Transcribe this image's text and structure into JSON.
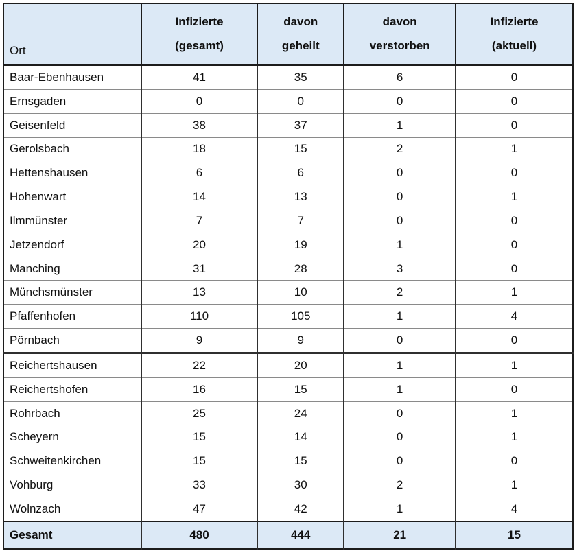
{
  "table": {
    "header": {
      "ort": "Ort",
      "infizierte_gesamt_line1": "Infizierte",
      "infizierte_gesamt_line2": "(gesamt)",
      "davon_geheilt_line1": "davon",
      "davon_geheilt_line2": "geheilt",
      "davon_verstorben_line1": "davon",
      "davon_verstorben_line2": "verstorben",
      "infizierte_aktuell_line1": "Infizierte",
      "infizierte_aktuell_line2": "(aktuell)"
    },
    "rows": [
      {
        "ort": "Baar-Ebenhausen",
        "infizierte_gesamt": 41,
        "davon_geheilt": 35,
        "davon_verstorben": 6,
        "infizierte_aktuell": 0
      },
      {
        "ort": "Ernsgaden",
        "infizierte_gesamt": 0,
        "davon_geheilt": 0,
        "davon_verstorben": 0,
        "infizierte_aktuell": 0
      },
      {
        "ort": "Geisenfeld",
        "infizierte_gesamt": 38,
        "davon_geheilt": 37,
        "davon_verstorben": 1,
        "infizierte_aktuell": 0
      },
      {
        "ort": "Gerolsbach",
        "infizierte_gesamt": 18,
        "davon_geheilt": 15,
        "davon_verstorben": 2,
        "infizierte_aktuell": 1
      },
      {
        "ort": "Hettenshausen",
        "infizierte_gesamt": 6,
        "davon_geheilt": 6,
        "davon_verstorben": 0,
        "infizierte_aktuell": 0
      },
      {
        "ort": "Hohenwart",
        "infizierte_gesamt": 14,
        "davon_geheilt": 13,
        "davon_verstorben": 0,
        "infizierte_aktuell": 1
      },
      {
        "ort": "Ilmmünster",
        "infizierte_gesamt": 7,
        "davon_geheilt": 7,
        "davon_verstorben": 0,
        "infizierte_aktuell": 0
      },
      {
        "ort": "Jetzendorf",
        "infizierte_gesamt": 20,
        "davon_geheilt": 19,
        "davon_verstorben": 1,
        "infizierte_aktuell": 0
      },
      {
        "ort": "Manching",
        "infizierte_gesamt": 31,
        "davon_geheilt": 28,
        "davon_verstorben": 3,
        "infizierte_aktuell": 0
      },
      {
        "ort": "Münchsmünster",
        "infizierte_gesamt": 13,
        "davon_geheilt": 10,
        "davon_verstorben": 2,
        "infizierte_aktuell": 1
      },
      {
        "ort": "Pfaffenhofen",
        "infizierte_gesamt": 110,
        "davon_geheilt": 105,
        "davon_verstorben": 1,
        "infizierte_aktuell": 4
      },
      {
        "ort": "Pörnbach",
        "infizierte_gesamt": 9,
        "davon_geheilt": 9,
        "davon_verstorben": 0,
        "infizierte_aktuell": 0
      },
      {
        "ort": "Reichertshausen",
        "infizierte_gesamt": 22,
        "davon_geheilt": 20,
        "davon_verstorben": 1,
        "infizierte_aktuell": 1
      },
      {
        "ort": "Reichertshofen",
        "infizierte_gesamt": 16,
        "davon_geheilt": 15,
        "davon_verstorben": 1,
        "infizierte_aktuell": 0
      },
      {
        "ort": "Rohrbach",
        "infizierte_gesamt": 25,
        "davon_geheilt": 24,
        "davon_verstorben": 0,
        "infizierte_aktuell": 1
      },
      {
        "ort": "Scheyern",
        "infizierte_gesamt": 15,
        "davon_geheilt": 14,
        "davon_verstorben": 0,
        "infizierte_aktuell": 1
      },
      {
        "ort": "Schweitenkirchen",
        "infizierte_gesamt": 15,
        "davon_geheilt": 15,
        "davon_verstorben": 0,
        "infizierte_aktuell": 0
      },
      {
        "ort": "Vohburg",
        "infizierte_gesamt": 33,
        "davon_geheilt": 30,
        "davon_verstorben": 2,
        "infizierte_aktuell": 1
      },
      {
        "ort": "Wolnzach",
        "infizierte_gesamt": 47,
        "davon_geheilt": 42,
        "davon_verstorben": 1,
        "infizierte_aktuell": 4
      }
    ],
    "total_row": {
      "ort": "Gesamt",
      "infizierte_gesamt": 480,
      "davon_geheilt": 444,
      "davon_verstorben": 21,
      "infizierte_aktuell": 15
    }
  },
  "colors": {
    "header_bg": "#dce9f6",
    "total_bg": "#dce9f6",
    "border_dark": "#1c1c1c",
    "border_mid": "#2f2f2f",
    "row_line": "#8a8a8a"
  }
}
